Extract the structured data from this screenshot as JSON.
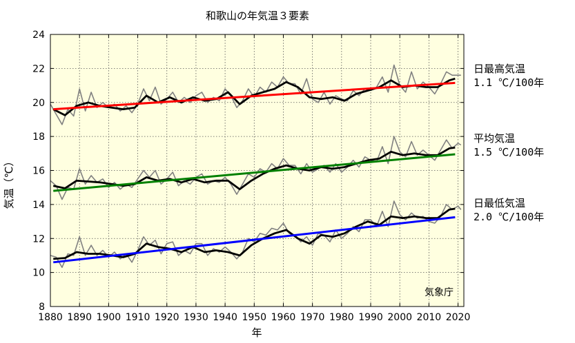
{
  "chart_data": {
    "type": "line",
    "title": "和歌山の年気温３要素",
    "xlabel": "年",
    "ylabel": "気温（℃）",
    "xlim": [
      1880,
      2022
    ],
    "ylim": [
      8,
      24
    ],
    "x_ticks": [
      1880,
      1890,
      1900,
      1910,
      1920,
      1930,
      1940,
      1950,
      1960,
      1970,
      1980,
      1990,
      2000,
      2010,
      2020
    ],
    "y_ticks": [
      8,
      10,
      12,
      14,
      16,
      18,
      20,
      22,
      24
    ],
    "grid": true,
    "background": "#ffffe0",
    "credit": "気象庁",
    "annual_color": "#808080",
    "moving_average_color": "#000000",
    "series": [
      {
        "name": "日最高気温",
        "rate": "1.1 ℃/100年",
        "trend_color": "#ff0000",
        "trend": {
          "x": [
            1881,
            2019
          ],
          "y": [
            19.6,
            21.15
          ]
        },
        "moving_average": {
          "x": [
            1881,
            1885,
            1889,
            1893,
            1897,
            1901,
            1905,
            1909,
            1913,
            1917,
            1921,
            1925,
            1929,
            1933,
            1937,
            1941,
            1945,
            1949,
            1953,
            1957,
            1961,
            1965,
            1969,
            1973,
            1977,
            1981,
            1985,
            1989,
            1993,
            1997,
            2001,
            2005,
            2009,
            2013,
            2017,
            2019
          ],
          "y": [
            19.6,
            19.25,
            19.8,
            20.0,
            19.8,
            19.7,
            19.6,
            19.7,
            20.4,
            20.0,
            20.3,
            20.0,
            20.3,
            20.1,
            20.2,
            20.6,
            19.9,
            20.4,
            20.6,
            20.8,
            21.2,
            20.9,
            20.3,
            20.2,
            20.3,
            20.1,
            20.5,
            20.7,
            20.9,
            21.3,
            20.9,
            21.0,
            20.9,
            20.9,
            21.3,
            21.4
          ]
        },
        "annual": {
          "x": [
            1880,
            1882,
            1884,
            1886,
            1888,
            1890,
            1892,
            1894,
            1896,
            1898,
            1900,
            1902,
            1904,
            1906,
            1908,
            1910,
            1912,
            1914,
            1916,
            1918,
            1920,
            1922,
            1924,
            1926,
            1928,
            1930,
            1932,
            1934,
            1936,
            1938,
            1940,
            1942,
            1944,
            1946,
            1948,
            1950,
            1952,
            1954,
            1956,
            1958,
            1960,
            1962,
            1964,
            1966,
            1968,
            1970,
            1972,
            1974,
            1976,
            1978,
            1980,
            1982,
            1984,
            1986,
            1988,
            1990,
            1992,
            1994,
            1996,
            1998,
            2000,
            2002,
            2004,
            2006,
            2008,
            2010,
            2012,
            2014,
            2016,
            2018,
            2020,
            2021
          ],
          "y": [
            19.9,
            19.3,
            18.7,
            19.6,
            19.2,
            20.8,
            19.5,
            20.6,
            19.7,
            20.0,
            19.7,
            19.9,
            19.5,
            19.8,
            19.4,
            19.9,
            20.8,
            20.1,
            20.9,
            19.9,
            20.2,
            20.6,
            20.0,
            20.3,
            20.0,
            20.4,
            20.6,
            20.0,
            20.3,
            20.1,
            20.8,
            20.4,
            19.7,
            20.1,
            20.8,
            20.3,
            20.9,
            20.6,
            21.2,
            20.9,
            21.5,
            21.1,
            21.1,
            20.5,
            21.4,
            20.2,
            20.0,
            20.6,
            19.9,
            20.4,
            20.2,
            20.1,
            20.7,
            20.4,
            20.8,
            20.7,
            20.9,
            21.5,
            20.6,
            22.2,
            21.0,
            20.6,
            21.8,
            20.8,
            21.2,
            20.9,
            20.5,
            21.1,
            21.8,
            21.6,
            21.6,
            21.6
          ]
        }
      },
      {
        "name": "平均気温",
        "rate": "1.5 ℃/100年",
        "trend_color": "#008000",
        "trend": {
          "x": [
            1881,
            2019
          ],
          "y": [
            14.8,
            16.95
          ]
        },
        "moving_average": {
          "x": [
            1881,
            1885,
            1889,
            1893,
            1897,
            1901,
            1905,
            1909,
            1913,
            1917,
            1921,
            1925,
            1929,
            1933,
            1937,
            1941,
            1945,
            1949,
            1953,
            1957,
            1961,
            1965,
            1969,
            1973,
            1977,
            1981,
            1985,
            1989,
            1993,
            1997,
            2001,
            2005,
            2009,
            2013,
            2017,
            2019
          ],
          "y": [
            15.1,
            14.95,
            15.4,
            15.35,
            15.3,
            15.2,
            15.1,
            15.2,
            15.6,
            15.4,
            15.5,
            15.3,
            15.5,
            15.3,
            15.4,
            15.4,
            14.9,
            15.4,
            15.8,
            16.1,
            16.3,
            16.1,
            16.0,
            16.2,
            16.1,
            16.2,
            16.4,
            16.6,
            16.7,
            17.1,
            16.9,
            17.0,
            16.9,
            16.9,
            17.3,
            17.35
          ]
        },
        "annual": {
          "x": [
            1880,
            1882,
            1884,
            1886,
            1888,
            1890,
            1892,
            1894,
            1896,
            1898,
            1900,
            1902,
            1904,
            1906,
            1908,
            1910,
            1912,
            1914,
            1916,
            1918,
            1920,
            1922,
            1924,
            1926,
            1928,
            1930,
            1932,
            1934,
            1936,
            1938,
            1940,
            1942,
            1944,
            1946,
            1948,
            1950,
            1952,
            1954,
            1956,
            1958,
            1960,
            1962,
            1964,
            1966,
            1968,
            1970,
            1972,
            1974,
            1976,
            1978,
            1980,
            1982,
            1984,
            1986,
            1988,
            1990,
            1992,
            1994,
            1996,
            1998,
            2000,
            2002,
            2004,
            2006,
            2008,
            2010,
            2012,
            2014,
            2016,
            2018,
            2020,
            2021
          ],
          "y": [
            15.4,
            15.1,
            14.3,
            15.0,
            14.9,
            16.1,
            15.2,
            15.7,
            15.3,
            15.5,
            15.0,
            15.3,
            14.9,
            15.2,
            15.0,
            15.5,
            16.0,
            15.6,
            16.0,
            15.2,
            15.5,
            15.9,
            15.1,
            15.4,
            15.2,
            15.6,
            15.8,
            15.2,
            15.4,
            15.3,
            15.6,
            15.2,
            14.6,
            15.2,
            15.8,
            15.6,
            16.1,
            15.9,
            16.4,
            16.1,
            16.7,
            16.3,
            16.3,
            15.8,
            16.4,
            15.9,
            16.1,
            16.3,
            15.9,
            16.4,
            15.9,
            16.2,
            16.6,
            16.2,
            16.8,
            16.6,
            16.5,
            17.4,
            16.4,
            18.0,
            17.1,
            16.8,
            17.7,
            16.9,
            17.2,
            16.9,
            16.6,
            17.2,
            17.8,
            17.3,
            17.6,
            17.5
          ]
        }
      },
      {
        "name": "日最低気温",
        "rate": "2.0 ℃/100年",
        "trend_color": "#0000ff",
        "trend": {
          "x": [
            1881,
            2019
          ],
          "y": [
            10.6,
            13.25
          ]
        },
        "moving_average": {
          "x": [
            1881,
            1885,
            1889,
            1893,
            1897,
            1901,
            1905,
            1909,
            1913,
            1917,
            1921,
            1925,
            1929,
            1933,
            1937,
            1941,
            1945,
            1949,
            1953,
            1957,
            1961,
            1965,
            1969,
            1973,
            1977,
            1981,
            1985,
            1989,
            1993,
            1997,
            2001,
            2005,
            2009,
            2013,
            2017,
            2019
          ],
          "y": [
            10.8,
            10.85,
            11.2,
            11.1,
            11.1,
            11.0,
            10.9,
            11.1,
            11.7,
            11.5,
            11.4,
            11.2,
            11.5,
            11.2,
            11.3,
            11.2,
            11.0,
            11.6,
            12.0,
            12.3,
            12.5,
            12.0,
            11.7,
            12.2,
            12.1,
            12.3,
            12.7,
            13.0,
            12.8,
            13.3,
            13.2,
            13.3,
            13.2,
            13.2,
            13.7,
            13.75
          ]
        },
        "annual": {
          "x": [
            1880,
            1882,
            1884,
            1886,
            1888,
            1890,
            1892,
            1894,
            1896,
            1898,
            1900,
            1902,
            1904,
            1906,
            1908,
            1910,
            1912,
            1914,
            1916,
            1918,
            1920,
            1922,
            1924,
            1926,
            1928,
            1930,
            1932,
            1934,
            1936,
            1938,
            1940,
            1942,
            1944,
            1946,
            1948,
            1950,
            1952,
            1954,
            1956,
            1958,
            1960,
            1962,
            1964,
            1966,
            1968,
            1970,
            1972,
            1974,
            1976,
            1978,
            1980,
            1982,
            1984,
            1986,
            1988,
            1990,
            1992,
            1994,
            1996,
            1998,
            2000,
            2002,
            2004,
            2006,
            2008,
            2010,
            2012,
            2014,
            2016,
            2018,
            2020,
            2021
          ],
          "y": [
            11.0,
            10.9,
            10.3,
            11.1,
            11.0,
            12.1,
            11.0,
            11.6,
            11.0,
            11.3,
            10.9,
            11.2,
            10.8,
            11.1,
            10.6,
            11.3,
            12.1,
            11.6,
            11.9,
            11.1,
            11.7,
            11.8,
            11.0,
            11.3,
            11.1,
            11.7,
            11.7,
            11.0,
            11.4,
            11.2,
            11.5,
            11.2,
            10.8,
            11.2,
            12.0,
            11.8,
            12.3,
            12.2,
            12.6,
            12.5,
            12.9,
            12.3,
            12.2,
            11.8,
            12.1,
            11.6,
            12.3,
            12.2,
            11.8,
            12.5,
            12.0,
            12.3,
            12.7,
            12.4,
            13.1,
            13.1,
            12.7,
            13.6,
            12.7,
            14.2,
            13.4,
            13.1,
            13.5,
            13.2,
            13.3,
            13.0,
            12.9,
            13.3,
            14.0,
            13.7,
            13.9,
            13.7
          ]
        }
      }
    ]
  }
}
